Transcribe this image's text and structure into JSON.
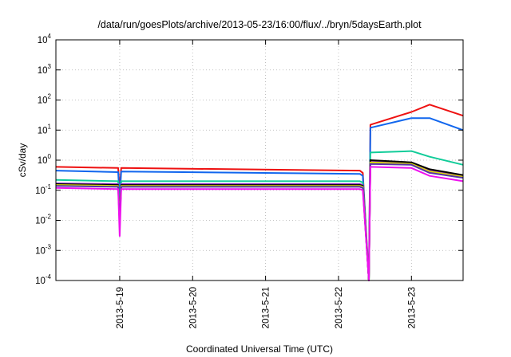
{
  "chart_data": {
    "type": "line",
    "title": "/data/run/goesPlots/archive/2013-05-23/16:00/flux/../bryn/5daysEarth.plot",
    "xlabel": "Coordinated Universal Time (UTC)",
    "ylabel": "cSv/day",
    "yscale": "log",
    "ylim": [
      0.0001,
      10000
    ],
    "y_ticks": [
      {
        "base": "10",
        "exp": "-4"
      },
      {
        "base": "10",
        "exp": "-3"
      },
      {
        "base": "10",
        "exp": "-2"
      },
      {
        "base": "10",
        "exp": "-1"
      },
      {
        "base": "10",
        "exp": "0"
      },
      {
        "base": "10",
        "exp": "1"
      },
      {
        "base": "10",
        "exp": "2"
      },
      {
        "base": "10",
        "exp": "3"
      },
      {
        "base": "10",
        "exp": "4"
      }
    ],
    "xlim": [
      "2013-05-18 03:00",
      "2013-05-23 17:00"
    ],
    "x_ticks": [
      "2013-5-19",
      "2013-5-20",
      "2013-5-21",
      "2013-5-22",
      "2013-5-23"
    ],
    "grid": true,
    "series": [
      {
        "color": "#ee1111",
        "x": [
          "2013-05-18 03:00",
          "2013-05-18 23:30",
          "2013-05-19 00:00",
          "2013-05-19 00:30",
          "2013-05-22 07:00",
          "2013-05-22 08:00",
          "2013-05-22 10:00",
          "2013-05-22 10:30",
          "2013-05-23 00:00",
          "2013-05-23 06:00",
          "2013-05-23 17:00"
        ],
        "y": [
          0.6,
          0.55,
          0.1,
          0.55,
          0.45,
          0.38,
          0.0001,
          15,
          40,
          70,
          30
        ]
      },
      {
        "color": "#1166ee",
        "x": [
          "2013-05-18 03:00",
          "2013-05-18 23:30",
          "2013-05-19 00:00",
          "2013-05-19 00:30",
          "2013-05-22 07:00",
          "2013-05-22 08:00",
          "2013-05-22 10:00",
          "2013-05-22 10:30",
          "2013-05-23 00:00",
          "2013-05-23 06:00",
          "2013-05-23 17:00"
        ],
        "y": [
          0.45,
          0.4,
          0.05,
          0.42,
          0.35,
          0.3,
          0.0001,
          12,
          25,
          25,
          10
        ]
      },
      {
        "color": "#11cc99",
        "x": [
          "2013-05-18 03:00",
          "2013-05-18 23:30",
          "2013-05-19 00:00",
          "2013-05-19 00:30",
          "2013-05-22 07:00",
          "2013-05-22 08:00",
          "2013-05-22 10:00",
          "2013-05-22 10:30",
          "2013-05-23 00:00",
          "2013-05-23 06:00",
          "2013-05-23 17:00"
        ],
        "y": [
          0.22,
          0.2,
          0.02,
          0.2,
          0.2,
          0.18,
          0.0001,
          1.8,
          2.0,
          1.3,
          0.7
        ]
      },
      {
        "color": "#9933cc",
        "x": [
          "2013-05-18 03:00",
          "2013-05-18 23:30",
          "2013-05-19 00:00",
          "2013-05-19 00:30",
          "2013-05-22 07:00",
          "2013-05-22 08:00",
          "2013-05-22 10:00",
          "2013-05-22 10:30",
          "2013-05-23 00:00",
          "2013-05-23 06:00",
          "2013-05-23 17:00"
        ],
        "y": [
          0.17,
          0.16,
          0.008,
          0.16,
          0.16,
          0.15,
          0.0001,
          0.9,
          0.8,
          0.45,
          0.3
        ]
      },
      {
        "color": "#000000",
        "x": [
          "2013-05-18 03:00",
          "2013-05-18 23:30",
          "2013-05-19 00:00",
          "2013-05-19 00:30",
          "2013-05-22 07:00",
          "2013-05-22 08:00",
          "2013-05-22 10:00",
          "2013-05-22 10:30",
          "2013-05-23 00:00",
          "2013-05-23 06:00",
          "2013-05-23 17:00"
        ],
        "y": [
          0.16,
          0.15,
          0.01,
          0.15,
          0.15,
          0.14,
          0.0001,
          1.0,
          0.85,
          0.5,
          0.32
        ]
      },
      {
        "color": "#dddd00",
        "x": [
          "2013-05-18 03:00",
          "2013-05-18 23:30",
          "2013-05-19 00:00",
          "2013-05-19 00:30",
          "2013-05-22 07:00",
          "2013-05-22 08:00",
          "2013-05-22 10:00",
          "2013-05-22 10:30",
          "2013-05-23 00:00",
          "2013-05-23 06:00",
          "2013-05-23 17:00"
        ],
        "y": [
          0.15,
          0.14,
          0.01,
          0.14,
          0.14,
          0.13,
          0.0001,
          0.85,
          0.75,
          0.42,
          0.28
        ]
      },
      {
        "color": "#5533aa",
        "x": [
          "2013-05-18 03:00",
          "2013-05-18 23:30",
          "2013-05-19 00:00",
          "2013-05-19 00:30",
          "2013-05-22 07:00",
          "2013-05-22 08:00",
          "2013-05-22 10:00",
          "2013-05-22 10:30",
          "2013-05-23 00:00",
          "2013-05-23 06:00",
          "2013-05-23 17:00"
        ],
        "y": [
          0.14,
          0.13,
          0.008,
          0.13,
          0.13,
          0.12,
          0.0001,
          0.75,
          0.7,
          0.38,
          0.26
        ]
      },
      {
        "color": "#ee11ee",
        "x": [
          "2013-05-18 03:00",
          "2013-05-18 23:30",
          "2013-05-19 00:00",
          "2013-05-19 00:30",
          "2013-05-22 07:00",
          "2013-05-22 08:00",
          "2013-05-22 10:00",
          "2013-05-22 10:30",
          "2013-05-23 00:00",
          "2013-05-23 06:00",
          "2013-05-23 17:00"
        ],
        "y": [
          0.12,
          0.11,
          0.003,
          0.11,
          0.11,
          0.1,
          0.0001,
          0.6,
          0.55,
          0.3,
          0.2
        ]
      }
    ]
  }
}
